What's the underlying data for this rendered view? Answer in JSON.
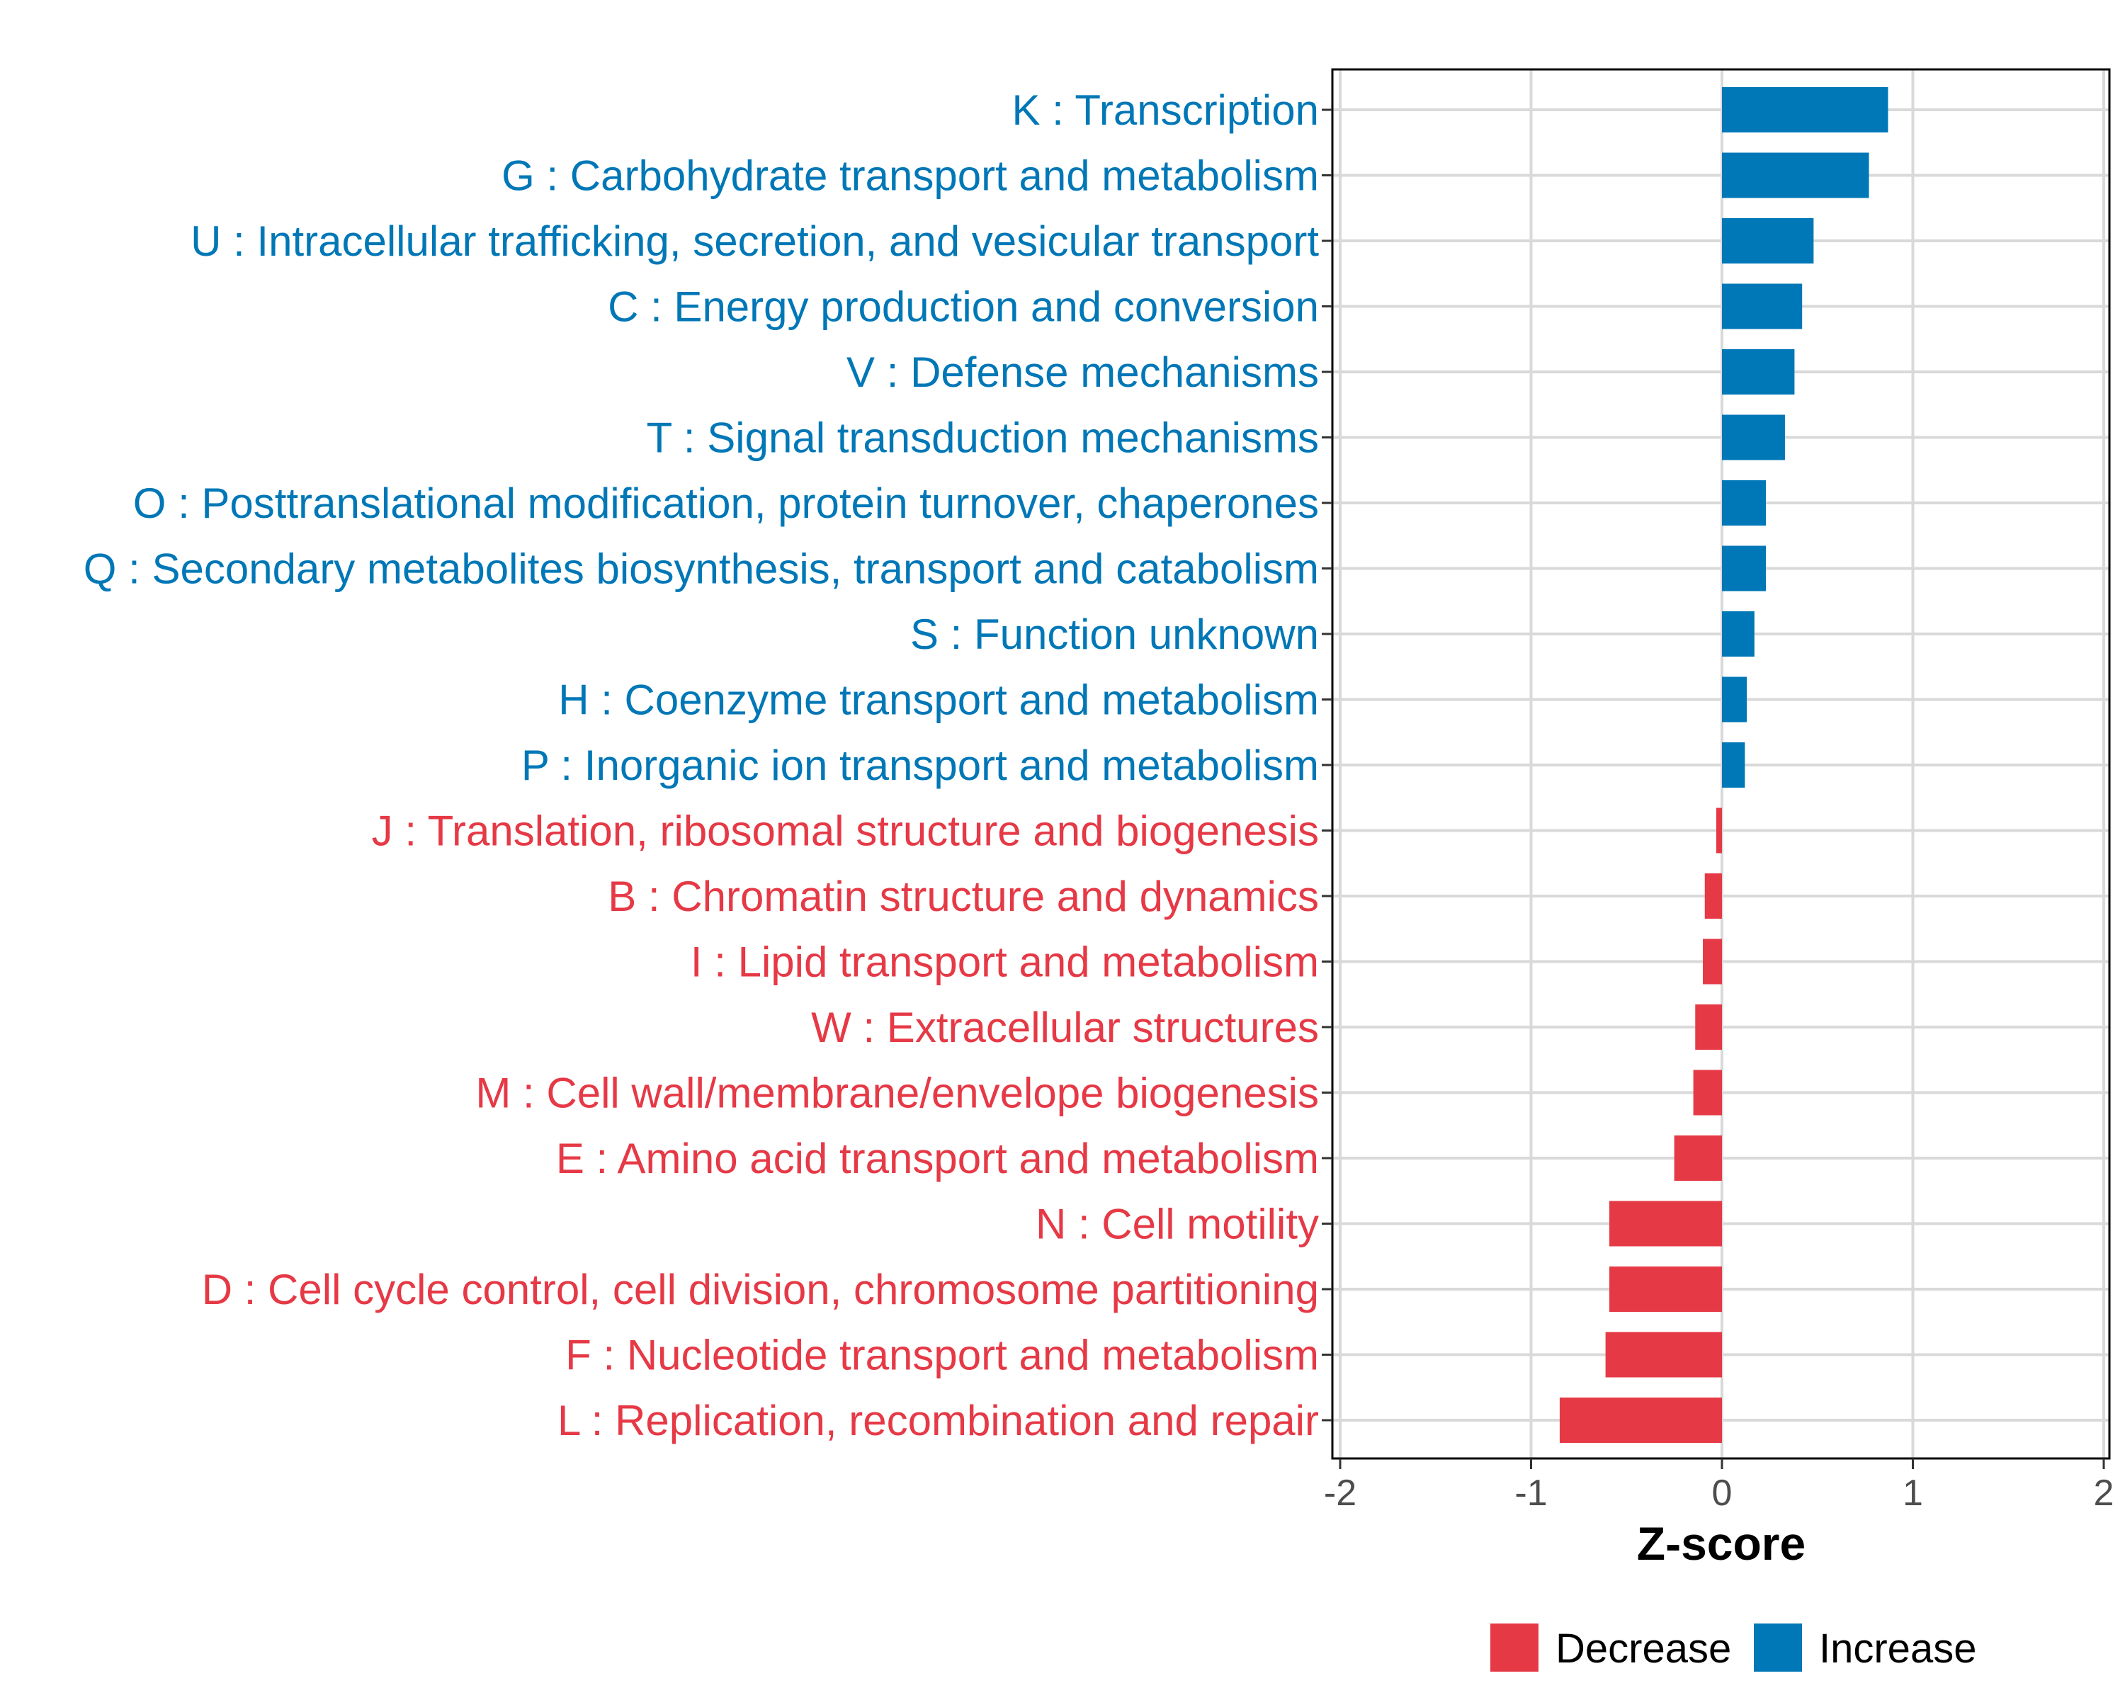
{
  "chart_data": {
    "type": "bar",
    "orientation": "horizontal",
    "title": "",
    "xlabel": "Z-score",
    "ylabel": "",
    "xlim": [
      -2,
      2
    ],
    "xticks": [
      -2,
      -1,
      0,
      1,
      2
    ],
    "xtick_labels": [
      "-2",
      "-1",
      "0",
      "1",
      "2"
    ],
    "grid": true,
    "legend_position": "bottom",
    "colors": {
      "Decrease": "#e63946",
      "Increase": "#0077b6"
    },
    "legend": [
      {
        "name": "Decrease",
        "color": "#e63946"
      },
      {
        "name": "Increase",
        "color": "#0077b6"
      }
    ],
    "bars": [
      {
        "label": "K : Transcription",
        "value": 0.87,
        "direction": "Increase"
      },
      {
        "label": "G : Carbohydrate transport and metabolism",
        "value": 0.77,
        "direction": "Increase"
      },
      {
        "label": "U : Intracellular trafficking, secretion, and vesicular transport",
        "value": 0.48,
        "direction": "Increase"
      },
      {
        "label": "C : Energy production and conversion",
        "value": 0.42,
        "direction": "Increase"
      },
      {
        "label": "V : Defense mechanisms",
        "value": 0.38,
        "direction": "Increase"
      },
      {
        "label": "T : Signal transduction mechanisms",
        "value": 0.33,
        "direction": "Increase"
      },
      {
        "label": "O : Posttranslational modification, protein turnover, chaperones",
        "value": 0.23,
        "direction": "Increase"
      },
      {
        "label": "Q : Secondary metabolites biosynthesis, transport and catabolism",
        "value": 0.23,
        "direction": "Increase"
      },
      {
        "label": "S : Function unknown",
        "value": 0.17,
        "direction": "Increase"
      },
      {
        "label": "H : Coenzyme transport and metabolism",
        "value": 0.13,
        "direction": "Increase"
      },
      {
        "label": "P : Inorganic ion transport and metabolism",
        "value": 0.12,
        "direction": "Increase"
      },
      {
        "label": "J : Translation, ribosomal structure and biogenesis",
        "value": -0.03,
        "direction": "Decrease"
      },
      {
        "label": "B : Chromatin structure and dynamics",
        "value": -0.09,
        "direction": "Decrease"
      },
      {
        "label": "I : Lipid transport and metabolism",
        "value": -0.1,
        "direction": "Decrease"
      },
      {
        "label": "W : Extracellular structures",
        "value": -0.14,
        "direction": "Decrease"
      },
      {
        "label": "M : Cell wall/membrane/envelope biogenesis",
        "value": -0.15,
        "direction": "Decrease"
      },
      {
        "label": "E : Amino acid transport and metabolism",
        "value": -0.25,
        "direction": "Decrease"
      },
      {
        "label": "N : Cell motility",
        "value": -0.59,
        "direction": "Decrease"
      },
      {
        "label": "D : Cell cycle control, cell division, chromosome partitioning",
        "value": -0.59,
        "direction": "Decrease"
      },
      {
        "label": "F : Nucleotide transport and metabolism",
        "value": -0.61,
        "direction": "Decrease"
      },
      {
        "label": "L : Replication, recombination and repair",
        "value": -0.85,
        "direction": "Decrease"
      }
    ]
  }
}
